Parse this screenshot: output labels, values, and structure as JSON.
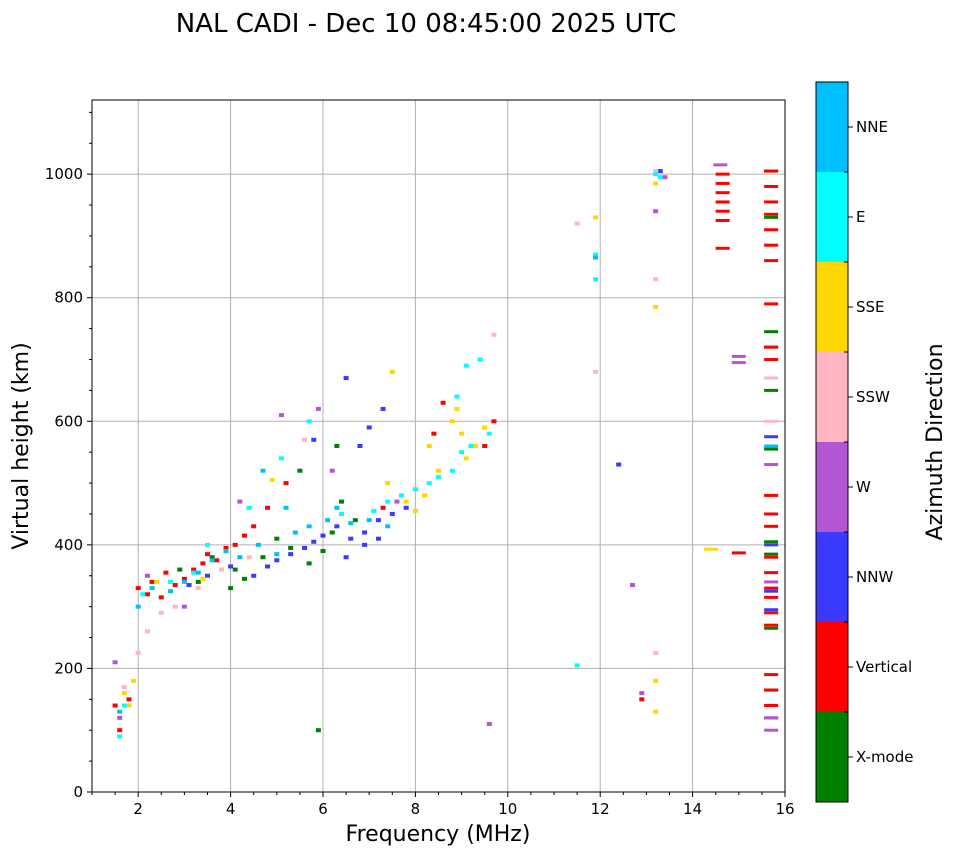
{
  "chart_data": {
    "type": "scatter",
    "title": "NAL CADI - Dec 10 08:45:00 2025 UTC",
    "xlabel": "Frequency (MHz)",
    "ylabel": "Virtual height (km)",
    "xlim": [
      1,
      16
    ],
    "ylim": [
      0,
      1120
    ],
    "xticks": [
      2,
      4,
      6,
      8,
      10,
      12,
      14,
      16
    ],
    "yticks": [
      0,
      200,
      400,
      600,
      800,
      1000
    ],
    "grid": true,
    "colorbar": {
      "title": "Azimuth Direction",
      "categories": [
        {
          "name": "X-mode",
          "color": "#008000"
        },
        {
          "name": "Vertical",
          "color": "#ff0000"
        },
        {
          "name": "NNW",
          "color": "#3a3aff"
        },
        {
          "name": "W",
          "color": "#b455d3"
        },
        {
          "name": "SSW",
          "color": "#ffb6c1"
        },
        {
          "name": "SSE",
          "color": "#ffd700"
        },
        {
          "name": "E",
          "color": "#00ffff"
        },
        {
          "name": "NNE",
          "color": "#00bfff"
        }
      ]
    },
    "series": [
      {
        "name": "X-mode",
        "points": [
          [
            2.9,
            360
          ],
          [
            3.3,
            340
          ],
          [
            4.0,
            330
          ],
          [
            4.3,
            345
          ],
          [
            4.7,
            380
          ],
          [
            5.0,
            410
          ],
          [
            5.3,
            395
          ],
          [
            5.7,
            370
          ],
          [
            6.0,
            390
          ],
          [
            6.2,
            420
          ],
          [
            6.4,
            470
          ],
          [
            6.7,
            440
          ],
          [
            5.9,
            100
          ],
          [
            5.5,
            520
          ],
          [
            6.3,
            560
          ],
          [
            4.1,
            360
          ],
          [
            3.6,
            380
          ],
          [
            15.7,
            1005
          ],
          [
            15.7,
            930
          ],
          [
            15.7,
            745
          ],
          [
            15.7,
            720
          ],
          [
            15.7,
            650
          ],
          [
            15.7,
            555
          ],
          [
            15.7,
            405
          ],
          [
            15.7,
            385
          ],
          [
            15.7,
            265
          ],
          [
            15.7,
            165
          ]
        ]
      },
      {
        "name": "Vertical",
        "points": [
          [
            1.5,
            140
          ],
          [
            1.6,
            100
          ],
          [
            1.8,
            150
          ],
          [
            2.0,
            330
          ],
          [
            2.2,
            320
          ],
          [
            2.3,
            340
          ],
          [
            2.5,
            315
          ],
          [
            2.6,
            355
          ],
          [
            2.8,
            335
          ],
          [
            3.0,
            345
          ],
          [
            3.2,
            360
          ],
          [
            3.4,
            370
          ],
          [
            3.5,
            385
          ],
          [
            3.7,
            375
          ],
          [
            3.9,
            395
          ],
          [
            4.1,
            400
          ],
          [
            4.3,
            415
          ],
          [
            4.5,
            430
          ],
          [
            4.8,
            460
          ],
          [
            5.2,
            500
          ],
          [
            7.3,
            460
          ],
          [
            8.4,
            580
          ],
          [
            8.6,
            630
          ],
          [
            9.5,
            560
          ],
          [
            9.7,
            600
          ],
          [
            12.9,
            150
          ],
          [
            14.65,
            1000
          ],
          [
            14.65,
            985
          ],
          [
            14.65,
            970
          ],
          [
            14.65,
            955
          ],
          [
            14.65,
            940
          ],
          [
            14.65,
            925
          ],
          [
            14.65,
            880
          ],
          [
            15.0,
            387
          ],
          [
            15.7,
            1005
          ],
          [
            15.7,
            980
          ],
          [
            15.7,
            955
          ],
          [
            15.7,
            935
          ],
          [
            15.7,
            910
          ],
          [
            15.7,
            885
          ],
          [
            15.7,
            860
          ],
          [
            15.7,
            790
          ],
          [
            15.7,
            720
          ],
          [
            15.7,
            700
          ],
          [
            15.7,
            480
          ],
          [
            15.7,
            450
          ],
          [
            15.7,
            430
          ],
          [
            15.7,
            380
          ],
          [
            15.7,
            355
          ],
          [
            15.7,
            330
          ],
          [
            15.7,
            315
          ],
          [
            15.7,
            290
          ],
          [
            15.7,
            270
          ],
          [
            15.7,
            190
          ],
          [
            15.7,
            165
          ],
          [
            15.7,
            140
          ]
        ]
      },
      {
        "name": "NNW",
        "points": [
          [
            3.1,
            335
          ],
          [
            3.5,
            350
          ],
          [
            4.0,
            365
          ],
          [
            4.5,
            350
          ],
          [
            4.8,
            365
          ],
          [
            5.0,
            375
          ],
          [
            5.3,
            385
          ],
          [
            5.6,
            395
          ],
          [
            5.8,
            405
          ],
          [
            6.0,
            415
          ],
          [
            6.3,
            430
          ],
          [
            6.6,
            410
          ],
          [
            6.9,
            420
          ],
          [
            7.2,
            440
          ],
          [
            7.5,
            450
          ],
          [
            7.8,
            460
          ],
          [
            6.5,
            380
          ],
          [
            6.9,
            400
          ],
          [
            7.2,
            410
          ],
          [
            6.5,
            670
          ],
          [
            6.8,
            560
          ],
          [
            7.0,
            590
          ],
          [
            7.3,
            620
          ],
          [
            5.8,
            570
          ],
          [
            12.4,
            530
          ],
          [
            13.3,
            1005
          ],
          [
            15.7,
            575
          ],
          [
            15.7,
            400
          ],
          [
            15.7,
            325
          ],
          [
            15.7,
            295
          ],
          [
            15.7,
            120
          ]
        ]
      },
      {
        "name": "W",
        "points": [
          [
            1.5,
            210
          ],
          [
            1.6,
            120
          ],
          [
            2.2,
            350
          ],
          [
            3.0,
            300
          ],
          [
            4.2,
            470
          ],
          [
            5.1,
            610
          ],
          [
            5.9,
            620
          ],
          [
            6.2,
            520
          ],
          [
            7.6,
            470
          ],
          [
            9.6,
            110
          ],
          [
            12.7,
            335
          ],
          [
            12.9,
            160
          ],
          [
            13.2,
            940
          ],
          [
            13.4,
            995
          ],
          [
            14.6,
            1015
          ],
          [
            15.0,
            705
          ],
          [
            15.0,
            695
          ],
          [
            15.7,
            530
          ],
          [
            15.7,
            340
          ],
          [
            15.7,
            120
          ],
          [
            15.7,
            100
          ]
        ]
      },
      {
        "name": "SSW",
        "points": [
          [
            1.7,
            170
          ],
          [
            2.0,
            225
          ],
          [
            2.2,
            260
          ],
          [
            2.5,
            290
          ],
          [
            2.8,
            300
          ],
          [
            3.3,
            330
          ],
          [
            3.8,
            360
          ],
          [
            4.4,
            380
          ],
          [
            5.6,
            570
          ],
          [
            9.7,
            740
          ],
          [
            11.5,
            920
          ],
          [
            11.9,
            680
          ],
          [
            13.2,
            830
          ],
          [
            13.2,
            225
          ],
          [
            13.2,
            1005
          ],
          [
            15.7,
            670
          ],
          [
            15.7,
            600
          ]
        ]
      },
      {
        "name": "SSE",
        "points": [
          [
            1.7,
            160
          ],
          [
            1.8,
            140
          ],
          [
            1.9,
            180
          ],
          [
            2.4,
            340
          ],
          [
            3.4,
            345
          ],
          [
            4.9,
            505
          ],
          [
            7.4,
            500
          ],
          [
            7.5,
            680
          ],
          [
            7.8,
            470
          ],
          [
            8.0,
            455
          ],
          [
            8.2,
            480
          ],
          [
            8.3,
            560
          ],
          [
            8.5,
            520
          ],
          [
            8.8,
            600
          ],
          [
            8.9,
            620
          ],
          [
            9.0,
            580
          ],
          [
            9.1,
            540
          ],
          [
            9.3,
            560
          ],
          [
            9.5,
            590
          ],
          [
            11.9,
            930
          ],
          [
            13.2,
            985
          ],
          [
            13.2,
            785
          ],
          [
            13.2,
            180
          ],
          [
            13.2,
            130
          ],
          [
            14.4,
            393
          ]
        ]
      },
      {
        "name": "E",
        "points": [
          [
            1.6,
            90
          ],
          [
            1.7,
            140
          ],
          [
            2.1,
            320
          ],
          [
            2.7,
            340
          ],
          [
            3.2,
            355
          ],
          [
            3.5,
            400
          ],
          [
            4.4,
            460
          ],
          [
            5.1,
            540
          ],
          [
            5.7,
            600
          ],
          [
            6.4,
            450
          ],
          [
            7.1,
            455
          ],
          [
            7.4,
            470
          ],
          [
            7.7,
            480
          ],
          [
            8.0,
            490
          ],
          [
            8.3,
            500
          ],
          [
            8.5,
            510
          ],
          [
            8.8,
            520
          ],
          [
            9.0,
            550
          ],
          [
            9.2,
            560
          ],
          [
            9.6,
            580
          ],
          [
            9.1,
            690
          ],
          [
            9.4,
            700
          ],
          [
            8.9,
            640
          ],
          [
            11.9,
            870
          ],
          [
            11.9,
            830
          ],
          [
            11.5,
            205
          ],
          [
            13.2,
            1000
          ],
          [
            13.3,
            995
          ]
        ]
      },
      {
        "name": "NNE",
        "points": [
          [
            1.6,
            130
          ],
          [
            2.0,
            300
          ],
          [
            2.3,
            330
          ],
          [
            2.7,
            325
          ],
          [
            3.0,
            340
          ],
          [
            3.3,
            355
          ],
          [
            3.6,
            375
          ],
          [
            3.9,
            390
          ],
          [
            4.2,
            380
          ],
          [
            4.6,
            400
          ],
          [
            5.0,
            385
          ],
          [
            5.4,
            420
          ],
          [
            5.7,
            430
          ],
          [
            6.1,
            440
          ],
          [
            6.6,
            435
          ],
          [
            7.0,
            440
          ],
          [
            7.4,
            430
          ],
          [
            6.3,
            460
          ],
          [
            5.2,
            460
          ],
          [
            4.7,
            520
          ],
          [
            11.9,
            865
          ],
          [
            15.7,
            560
          ]
        ]
      }
    ]
  }
}
